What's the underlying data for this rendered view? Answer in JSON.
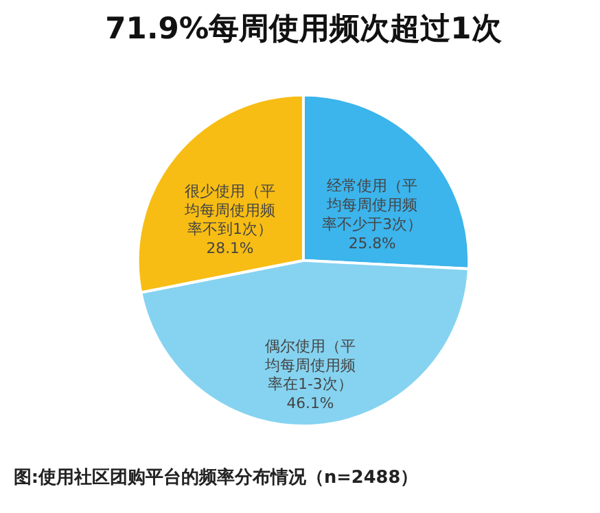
{
  "chart_data": {
    "type": "pie",
    "title": "71.9%每周使用频次超过1次",
    "categories": [
      "经常使用（平均每周使用频率不少于3次）",
      "偶尔使用（平均每周使用频率在1-3次）",
      "很少使用（平均每周使用频率不到1次）"
    ],
    "values": [
      25.8,
      46.1,
      28.1
    ],
    "colors": [
      "#3cb4ec",
      "#85d3f0",
      "#f7bd14"
    ],
    "value_labels": [
      "25.8%",
      "46.1%",
      "28.1%"
    ],
    "legend": false,
    "annotations": [
      "图:使用社区团购平台的频率分布情况（n=2488）"
    ]
  }
}
